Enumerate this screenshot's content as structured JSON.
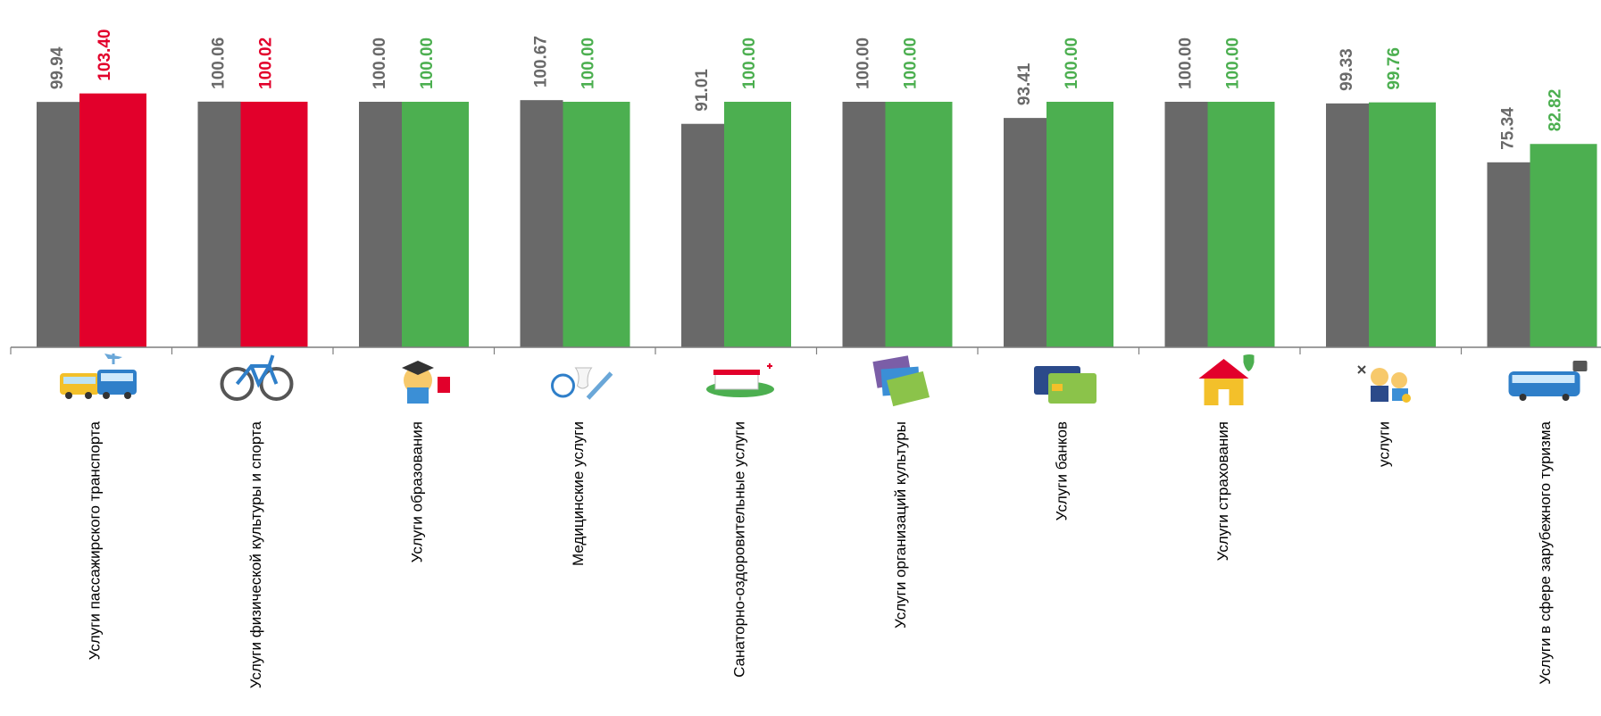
{
  "chart_data": {
    "type": "bar",
    "ylim": [
      0,
      105
    ],
    "grid": false,
    "legend": "none",
    "categories": [
      "Услуги пассажирского транспорта",
      "Услуги физической культуры и спорта",
      "Услуги образования",
      "Медицинские услуги",
      "Санаторно-оздоровительные услуги",
      "Услуги организаций культуры",
      "Услуги банков",
      "Услуги страхования",
      "услуги",
      "Услуги в сфере зарубежного туризма"
    ],
    "icons": [
      "transport-icon",
      "bicycle-icon",
      "graduate-icon",
      "medical-icon",
      "sanatorium-icon",
      "culture-tickets-icon",
      "bank-cards-icon",
      "insurance-house-icon",
      "personal-services-icon",
      "tour-bus-icon"
    ],
    "series": [
      {
        "values": [
          99.94,
          100.06,
          100.0,
          100.67,
          91.01,
          100.0,
          93.41,
          100.0,
          99.33,
          75.34
        ],
        "labels": [
          "99.94",
          "100.06",
          "100.00",
          "100.67",
          "91.01",
          "100.00",
          "93.41",
          "100.00",
          "99.33",
          "75.34"
        ],
        "colors": [
          "#696969",
          "#696969",
          "#696969",
          "#696969",
          "#696969",
          "#696969",
          "#696969",
          "#696969",
          "#696969",
          "#696969"
        ]
      },
      {
        "values": [
          103.4,
          100.02,
          100.0,
          100.0,
          100.0,
          100.0,
          100.0,
          100.0,
          99.76,
          82.82
        ],
        "labels": [
          "103.40",
          "100.02",
          "100.00",
          "100.00",
          "100.00",
          "100.00",
          "100.00",
          "100.00",
          "99.76",
          "82.82"
        ],
        "colors": [
          "#e2002b",
          "#e2002b",
          "#4caf50",
          "#4caf50",
          "#4caf50",
          "#4caf50",
          "#4caf50",
          "#4caf50",
          "#4caf50",
          "#4caf50"
        ]
      }
    ],
    "label_colors": [
      "#696969",
      [
        "#e2002b",
        "#e2002b",
        "#4caf50",
        "#4caf50",
        "#4caf50",
        "#4caf50",
        "#4caf50",
        "#4caf50",
        "#4caf50",
        "#4caf50"
      ]
    ]
  }
}
